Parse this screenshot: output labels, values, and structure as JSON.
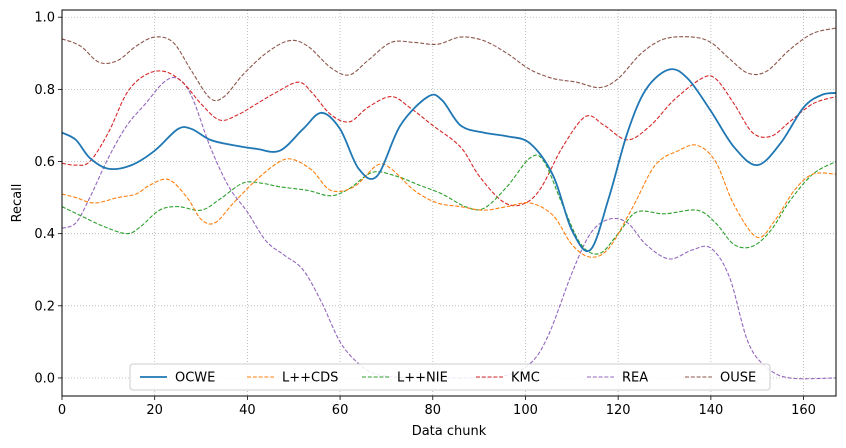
{
  "chart_data": {
    "type": "line",
    "xlabel": "Data chunk",
    "ylabel": "Recall",
    "xlim": [
      0,
      167
    ],
    "ylim": [
      -0.05,
      1.02
    ],
    "xticks": [
      0,
      20,
      40,
      60,
      80,
      100,
      120,
      140,
      160
    ],
    "yticks": [
      0.0,
      0.2,
      0.4,
      0.6,
      0.8,
      1.0
    ],
    "xtick_labels": [
      "0",
      "20",
      "40",
      "60",
      "80",
      "100",
      "120",
      "140",
      "160"
    ],
    "ytick_labels": [
      "0.0",
      "0.2",
      "0.4",
      "0.6",
      "0.8",
      "1.0"
    ],
    "grid": true,
    "legend_position": "lower center",
    "series": [
      {
        "name": "OCWE",
        "color": "#1f77b4",
        "style": "solid",
        "points": [
          [
            0,
            0.68
          ],
          [
            3,
            0.66
          ],
          [
            6,
            0.61
          ],
          [
            10,
            0.58
          ],
          [
            15,
            0.59
          ],
          [
            20,
            0.63
          ],
          [
            25,
            0.69
          ],
          [
            28,
            0.69
          ],
          [
            32,
            0.66
          ],
          [
            37,
            0.645
          ],
          [
            42,
            0.635
          ],
          [
            47,
            0.63
          ],
          [
            52,
            0.69
          ],
          [
            56,
            0.735
          ],
          [
            60,
            0.69
          ],
          [
            64,
            0.58
          ],
          [
            68,
            0.56
          ],
          [
            73,
            0.7
          ],
          [
            79,
            0.78
          ],
          [
            82,
            0.77
          ],
          [
            86,
            0.7
          ],
          [
            91,
            0.68
          ],
          [
            96,
            0.67
          ],
          [
            101,
            0.65
          ],
          [
            106,
            0.56
          ],
          [
            110,
            0.41
          ],
          [
            114,
            0.355
          ],
          [
            118,
            0.5
          ],
          [
            122,
            0.68
          ],
          [
            126,
            0.8
          ],
          [
            131,
            0.855
          ],
          [
            135,
            0.83
          ],
          [
            140,
            0.74
          ],
          [
            145,
            0.64
          ],
          [
            150,
            0.59
          ],
          [
            155,
            0.65
          ],
          [
            160,
            0.75
          ],
          [
            164,
            0.785
          ],
          [
            167,
            0.79
          ]
        ]
      },
      {
        "name": "L++CDS",
        "color": "#ff7f0e",
        "style": "dashed",
        "points": [
          [
            0,
            0.51
          ],
          [
            3,
            0.5
          ],
          [
            7,
            0.485
          ],
          [
            12,
            0.5
          ],
          [
            16,
            0.51
          ],
          [
            19,
            0.535
          ],
          [
            23,
            0.55
          ],
          [
            27,
            0.5
          ],
          [
            30,
            0.44
          ],
          [
            33,
            0.43
          ],
          [
            37,
            0.485
          ],
          [
            42,
            0.55
          ],
          [
            47,
            0.6
          ],
          [
            50,
            0.605
          ],
          [
            54,
            0.575
          ],
          [
            58,
            0.52
          ],
          [
            63,
            0.53
          ],
          [
            68,
            0.59
          ],
          [
            71,
            0.58
          ],
          [
            76,
            0.52
          ],
          [
            81,
            0.485
          ],
          [
            86,
            0.475
          ],
          [
            91,
            0.465
          ],
          [
            96,
            0.475
          ],
          [
            101,
            0.485
          ],
          [
            106,
            0.45
          ],
          [
            110,
            0.37
          ],
          [
            114,
            0.335
          ],
          [
            118,
            0.36
          ],
          [
            123,
            0.47
          ],
          [
            128,
            0.59
          ],
          [
            133,
            0.63
          ],
          [
            137,
            0.645
          ],
          [
            141,
            0.6
          ],
          [
            145,
            0.48
          ],
          [
            150,
            0.39
          ],
          [
            154,
            0.44
          ],
          [
            158,
            0.52
          ],
          [
            162,
            0.565
          ],
          [
            167,
            0.565
          ]
        ]
      },
      {
        "name": "L++NIE",
        "color": "#2ca02c",
        "style": "dashed",
        "points": [
          [
            0,
            0.475
          ],
          [
            4,
            0.45
          ],
          [
            9,
            0.42
          ],
          [
            14,
            0.4
          ],
          [
            17,
            0.42
          ],
          [
            21,
            0.465
          ],
          [
            25,
            0.475
          ],
          [
            30,
            0.465
          ],
          [
            34,
            0.495
          ],
          [
            39,
            0.54
          ],
          [
            43,
            0.54
          ],
          [
            47,
            0.53
          ],
          [
            53,
            0.52
          ],
          [
            58,
            0.505
          ],
          [
            62,
            0.525
          ],
          [
            67,
            0.57
          ],
          [
            72,
            0.56
          ],
          [
            77,
            0.535
          ],
          [
            82,
            0.51
          ],
          [
            87,
            0.475
          ],
          [
            91,
            0.47
          ],
          [
            96,
            0.53
          ],
          [
            101,
            0.61
          ],
          [
            104,
            0.6
          ],
          [
            108,
            0.48
          ],
          [
            112,
            0.37
          ],
          [
            116,
            0.345
          ],
          [
            120,
            0.4
          ],
          [
            124,
            0.46
          ],
          [
            130,
            0.455
          ],
          [
            137,
            0.465
          ],
          [
            141,
            0.43
          ],
          [
            145,
            0.37
          ],
          [
            149,
            0.365
          ],
          [
            153,
            0.41
          ],
          [
            157,
            0.49
          ],
          [
            162,
            0.565
          ],
          [
            167,
            0.6
          ]
        ]
      },
      {
        "name": "KMC",
        "color": "#d62728",
        "style": "dashed",
        "points": [
          [
            0,
            0.595
          ],
          [
            3,
            0.59
          ],
          [
            6,
            0.6
          ],
          [
            10,
            0.68
          ],
          [
            14,
            0.79
          ],
          [
            18,
            0.84
          ],
          [
            22,
            0.85
          ],
          [
            26,
            0.82
          ],
          [
            30,
            0.76
          ],
          [
            34,
            0.715
          ],
          [
            38,
            0.73
          ],
          [
            42,
            0.76
          ],
          [
            46,
            0.79
          ],
          [
            51,
            0.82
          ],
          [
            54,
            0.79
          ],
          [
            58,
            0.73
          ],
          [
            62,
            0.71
          ],
          [
            66,
            0.75
          ],
          [
            71,
            0.78
          ],
          [
            75,
            0.75
          ],
          [
            80,
            0.7
          ],
          [
            86,
            0.64
          ],
          [
            90,
            0.56
          ],
          [
            95,
            0.49
          ],
          [
            99,
            0.48
          ],
          [
            103,
            0.52
          ],
          [
            108,
            0.64
          ],
          [
            113,
            0.725
          ],
          [
            117,
            0.7
          ],
          [
            122,
            0.66
          ],
          [
            127,
            0.7
          ],
          [
            132,
            0.77
          ],
          [
            138,
            0.83
          ],
          [
            141,
            0.83
          ],
          [
            145,
            0.76
          ],
          [
            149,
            0.68
          ],
          [
            153,
            0.67
          ],
          [
            157,
            0.71
          ],
          [
            162,
            0.76
          ],
          [
            167,
            0.78
          ]
        ]
      },
      {
        "name": "REA",
        "color": "#9467bd",
        "style": "dashed",
        "points": [
          [
            0,
            0.415
          ],
          [
            3,
            0.43
          ],
          [
            6,
            0.5
          ],
          [
            10,
            0.61
          ],
          [
            14,
            0.7
          ],
          [
            18,
            0.76
          ],
          [
            22,
            0.82
          ],
          [
            25,
            0.83
          ],
          [
            28,
            0.78
          ],
          [
            32,
            0.64
          ],
          [
            36,
            0.53
          ],
          [
            40,
            0.46
          ],
          [
            44,
            0.38
          ],
          [
            48,
            0.34
          ],
          [
            52,
            0.3
          ],
          [
            56,
            0.21
          ],
          [
            60,
            0.1
          ],
          [
            64,
            0.04
          ],
          [
            68,
            0.01
          ],
          [
            75,
            0.0
          ],
          [
            85,
            0.0
          ],
          [
            95,
            0.005
          ],
          [
            101,
            0.04
          ],
          [
            105,
            0.12
          ],
          [
            110,
            0.29
          ],
          [
            114,
            0.4
          ],
          [
            118,
            0.44
          ],
          [
            122,
            0.43
          ],
          [
            126,
            0.37
          ],
          [
            131,
            0.33
          ],
          [
            136,
            0.355
          ],
          [
            140,
            0.36
          ],
          [
            144,
            0.28
          ],
          [
            148,
            0.1
          ],
          [
            152,
            0.03
          ],
          [
            157,
            0.0
          ],
          [
            167,
            0.0
          ]
        ]
      },
      {
        "name": "OUSE",
        "color": "#8c564b",
        "style": "dashed",
        "points": [
          [
            0,
            0.94
          ],
          [
            4,
            0.92
          ],
          [
            8,
            0.875
          ],
          [
            12,
            0.88
          ],
          [
            16,
            0.92
          ],
          [
            20,
            0.945
          ],
          [
            24,
            0.93
          ],
          [
            28,
            0.85
          ],
          [
            32,
            0.775
          ],
          [
            35,
            0.78
          ],
          [
            39,
            0.84
          ],
          [
            44,
            0.9
          ],
          [
            49,
            0.935
          ],
          [
            53,
            0.92
          ],
          [
            58,
            0.86
          ],
          [
            62,
            0.84
          ],
          [
            66,
            0.88
          ],
          [
            71,
            0.93
          ],
          [
            76,
            0.93
          ],
          [
            81,
            0.925
          ],
          [
            86,
            0.945
          ],
          [
            91,
            0.935
          ],
          [
            96,
            0.9
          ],
          [
            101,
            0.855
          ],
          [
            106,
            0.83
          ],
          [
            111,
            0.82
          ],
          [
            116,
            0.805
          ],
          [
            120,
            0.83
          ],
          [
            125,
            0.9
          ],
          [
            130,
            0.94
          ],
          [
            136,
            0.945
          ],
          [
            140,
            0.93
          ],
          [
            144,
            0.885
          ],
          [
            148,
            0.845
          ],
          [
            152,
            0.85
          ],
          [
            157,
            0.91
          ],
          [
            162,
            0.955
          ],
          [
            167,
            0.97
          ]
        ]
      }
    ]
  }
}
